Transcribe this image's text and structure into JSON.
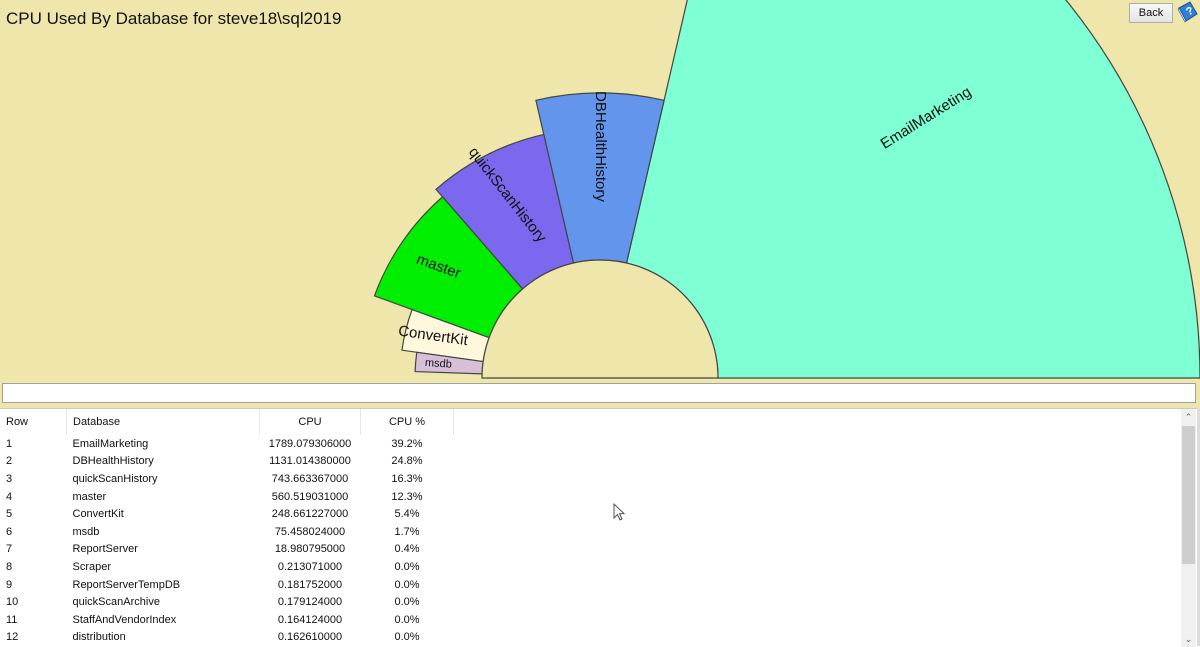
{
  "header": {
    "title": "CPU Used By Database for steve18\\sql2019",
    "back_label": "Back",
    "help_icon": "help-book-icon"
  },
  "colors": {
    "background": "#EEE6AA",
    "EmailMarketing": "#7FFFD4",
    "DBHealthHistory": "#6495ED",
    "quickScanHistory": "#7B68EE",
    "master": "#00EE00",
    "ConvertKit": "#FFF8DC",
    "msdb": "#D8BFD8"
  },
  "chart_data": {
    "type": "pie",
    "subtype": "radial-fan (half-donut, radius proportional to value)",
    "title": "CPU Used By Database for steve18\\sql2019",
    "labels": [
      "EmailMarketing",
      "DBHealthHistory",
      "quickScanHistory",
      "master",
      "ConvertKit",
      "msdb"
    ],
    "values": [
      1789.079306,
      1131.01438,
      743.663367,
      560.519031,
      248.661227,
      75.458024
    ],
    "percent": [
      39.2,
      24.8,
      16.3,
      12.3,
      5.4,
      1.7
    ]
  },
  "status_bar": {
    "text": ""
  },
  "table": {
    "columns": [
      "Row",
      "Database",
      "CPU",
      "CPU %"
    ],
    "rows": [
      [
        "1",
        "EmailMarketing",
        "1789.079306000",
        "39.2%"
      ],
      [
        "2",
        "DBHealthHistory",
        "1131.014380000",
        "24.8%"
      ],
      [
        "3",
        "quickScanHistory",
        "743.663367000",
        "16.3%"
      ],
      [
        "4",
        "master",
        "560.519031000",
        "12.3%"
      ],
      [
        "5",
        "ConvertKit",
        "248.661227000",
        "5.4%"
      ],
      [
        "6",
        "msdb",
        "75.458024000",
        "1.7%"
      ],
      [
        "7",
        "ReportServer",
        "18.980795000",
        "0.4%"
      ],
      [
        "8",
        "Scraper",
        "0.213071000",
        "0.0%"
      ],
      [
        "9",
        "ReportServerTempDB",
        "0.181752000",
        "0.0%"
      ],
      [
        "10",
        "quickScanArchive",
        "0.179124000",
        "0.0%"
      ],
      [
        "11",
        "StaffAndVendorIndex",
        "0.164124000",
        "0.0%"
      ],
      [
        "12",
        "distribution",
        "0.162610000",
        "0.0%"
      ]
    ]
  }
}
